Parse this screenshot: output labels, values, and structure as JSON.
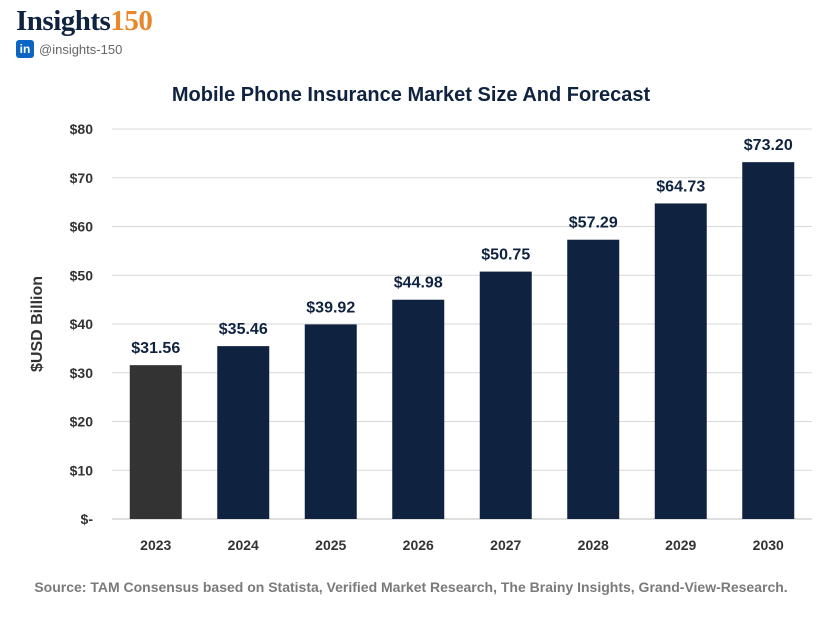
{
  "brand": {
    "name": "Insights",
    "number": "150",
    "linkedin_icon": "in",
    "handle": "@insights-150"
  },
  "source": "Source: TAM Consensus based on Statista, Verified Market Research, The Brainy Insights, Grand-View-Research.",
  "colors": {
    "highlight_bar": "#333333",
    "bar": "#0f2340",
    "text": "#0f2340",
    "axis_text": "#333333",
    "grid": "#d9d9d9"
  },
  "chart_data": {
    "type": "bar",
    "title": "Mobile Phone Insurance Market Size And Forecast",
    "xlabel": "",
    "ylabel": "$USD Billion",
    "categories": [
      "2023",
      "2024",
      "2025",
      "2026",
      "2027",
      "2028",
      "2029",
      "2030"
    ],
    "values": [
      31.56,
      35.46,
      39.92,
      44.98,
      50.75,
      57.29,
      64.73,
      73.2
    ],
    "value_labels": [
      "$31.56",
      "$35.46",
      "$39.92",
      "$44.98",
      "$50.75",
      "$57.29",
      "$64.73",
      "$73.20"
    ],
    "ylim": [
      0,
      80
    ],
    "yticks": [
      0,
      10,
      20,
      30,
      40,
      50,
      60,
      70,
      80
    ],
    "ytick_labels": [
      "$-",
      "$10",
      "$20",
      "$30",
      "$40",
      "$50",
      "$60",
      "$70",
      "$80"
    ],
    "grid": true,
    "legend": "none"
  }
}
